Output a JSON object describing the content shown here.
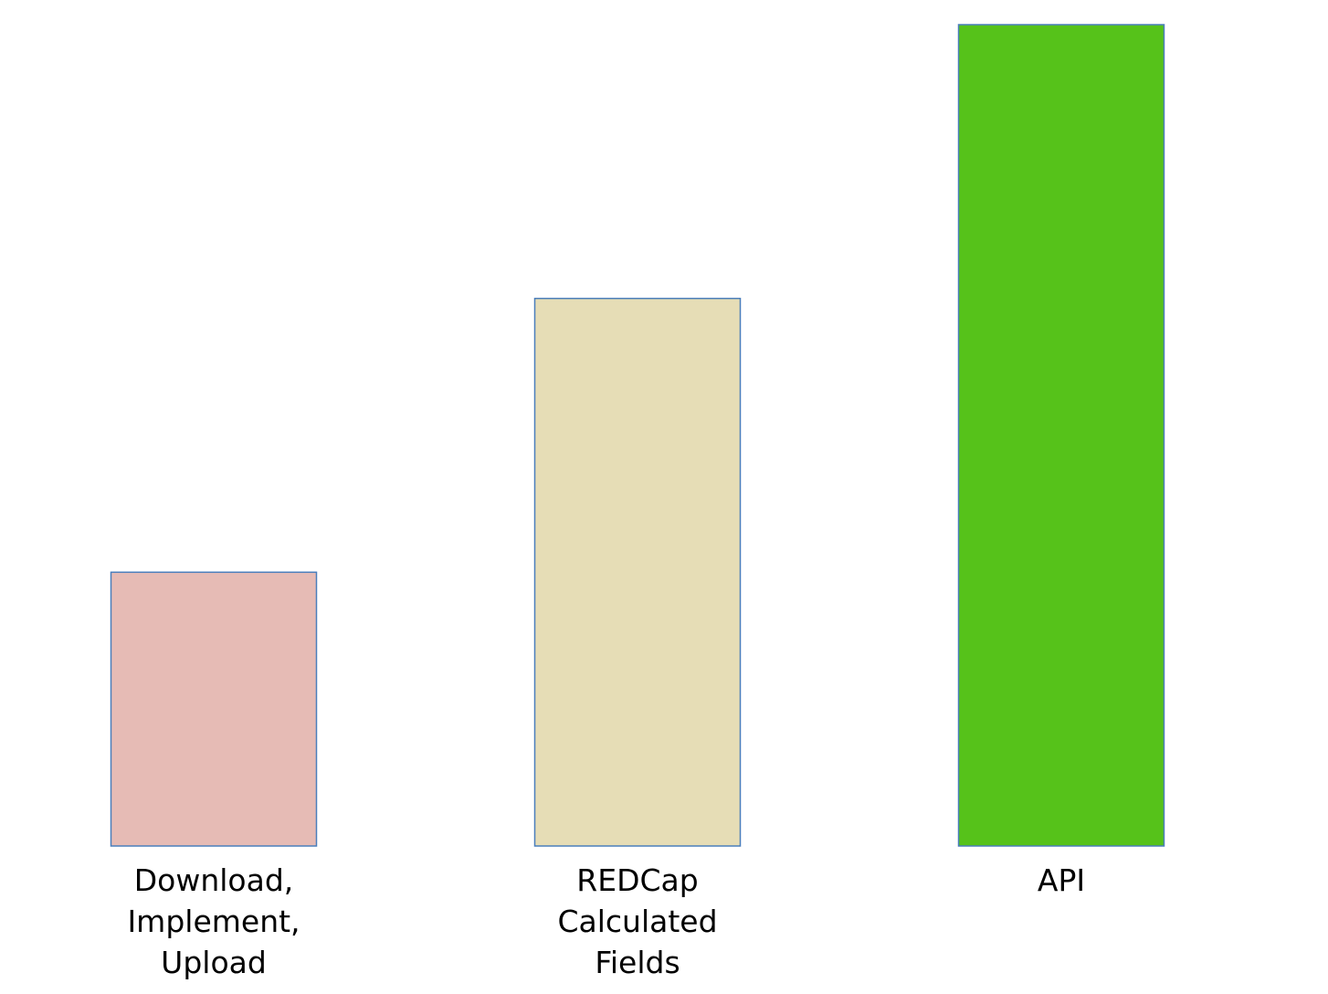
{
  "chart_data": {
    "type": "bar",
    "categories": [
      "Download,\nImplement,\nUpload",
      "REDCap\nCalculated\nFields",
      "API"
    ],
    "values": [
      1,
      2,
      3
    ],
    "colors": [
      "#e6bbb5",
      "#e6ddb6",
      "#56c21a"
    ],
    "bar_outline_color": "#4a7ebb",
    "title": "",
    "xlabel": "",
    "ylabel": "",
    "ylim": [
      0,
      3
    ],
    "grid": false,
    "legend": "none"
  }
}
